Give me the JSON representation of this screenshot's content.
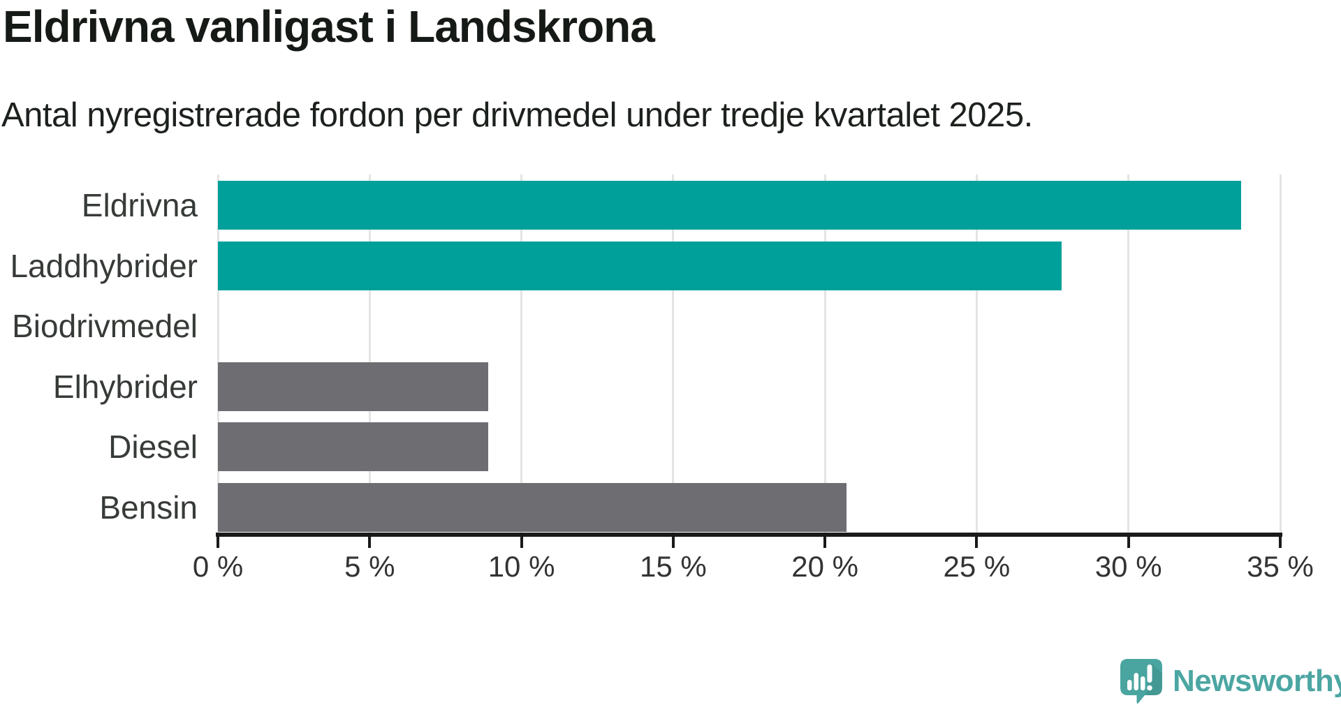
{
  "header": {
    "title": "Eldrivna vanligast i Landskrona",
    "subtitle": "Antal nyregistrerade fordon per drivmedel under tredje kvartalet 2025."
  },
  "chart_data": {
    "type": "bar",
    "orientation": "horizontal",
    "title": "Eldrivna vanligast i Landskrona",
    "subtitle": "Antal nyregistrerade fordon per drivmedel under tredje kvartalet 2025.",
    "categories": [
      "Eldrivna",
      "Laddhybrider",
      "Biodrivmedel",
      "Elhybrider",
      "Diesel",
      "Bensin"
    ],
    "values": [
      33.7,
      27.8,
      0,
      8.9,
      8.9,
      20.7
    ],
    "unit": "%",
    "xlabel": "",
    "ylabel": "",
    "xlim": [
      0,
      35
    ],
    "x_tick_values": [
      0,
      5,
      10,
      15,
      20,
      25,
      30,
      35
    ],
    "x_tick_labels": [
      "0 %",
      "5 %",
      "10 %",
      "15 %",
      "20 %",
      "25 %",
      "30 %",
      "35 %"
    ],
    "grid": true,
    "legend": false,
    "bar_colors": [
      "#00a09a",
      "#00a09a",
      "#6d6d72",
      "#6d6d72",
      "#6d6d72",
      "#6d6d72"
    ],
    "highlight_color": "#00a09a",
    "default_color": "#6d6d72",
    "gridline_color": "#e4e4e4",
    "axis_color": "#1a1a1a"
  },
  "branding": {
    "logo_text": "Newsworthy",
    "logo_color": "#4ca6a2",
    "logo_icon": "newsworthy-speech-bubble-bar-chart-icon"
  }
}
